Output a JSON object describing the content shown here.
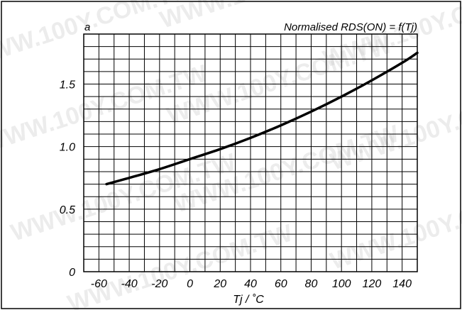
{
  "chart_data": {
    "type": "line",
    "title": "Normalised RDS(ON) = f(Tj)",
    "panel_label": "a",
    "xlabel": "Tj / ˚C",
    "ylabel": "",
    "xlim": [
      -70,
      150
    ],
    "ylim": [
      0,
      1.9
    ],
    "x_ticks": [
      -60,
      -40,
      -20,
      0,
      20,
      40,
      60,
      80,
      100,
      120,
      140
    ],
    "y_ticks": [
      {
        "value": 0,
        "label": "0"
      },
      {
        "value": 0.5,
        "label": "0.5"
      },
      {
        "value": 1.0,
        "label": "1.0"
      },
      {
        "value": 1.5,
        "label": "1.5"
      }
    ],
    "x_grid_step": 10,
    "y_grid_step": 0.1,
    "grid": true,
    "series": [
      {
        "x": [
          -55,
          -40,
          -20,
          0,
          20,
          40,
          60,
          80,
          100,
          120,
          140,
          150
        ],
        "y": [
          0.7,
          0.75,
          0.82,
          0.9,
          0.98,
          1.07,
          1.17,
          1.28,
          1.4,
          1.53,
          1.67,
          1.75
        ]
      }
    ]
  },
  "watermark": "WWW.100Y.COM.TW"
}
